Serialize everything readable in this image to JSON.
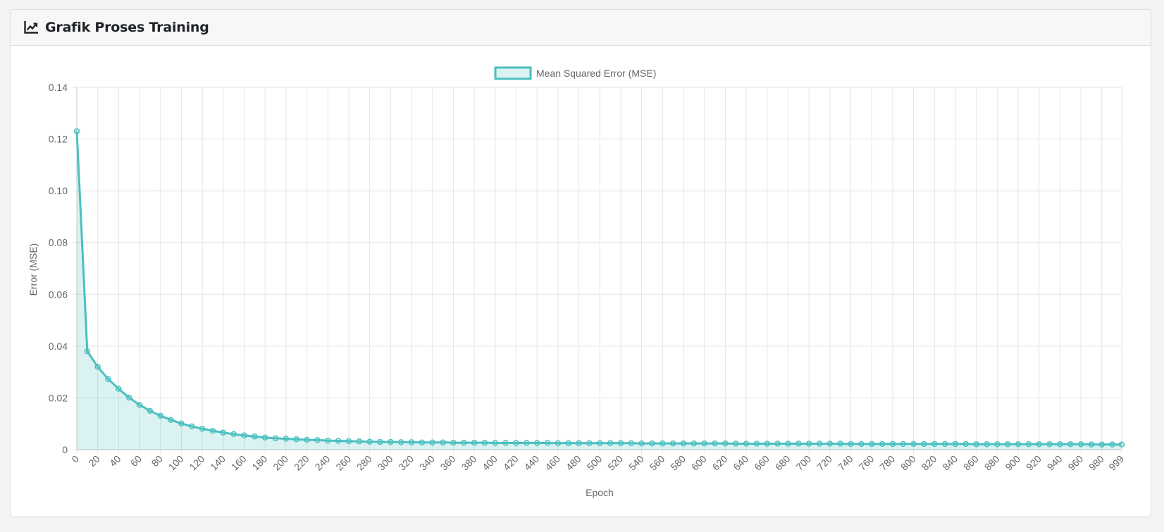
{
  "card": {
    "title": "Grafik Proses Training",
    "icon": "line-chart-icon"
  },
  "colors": {
    "line": "#4bc0c0",
    "fill": "rgba(75,192,192,0.2)",
    "grid": "#e5e5e5",
    "text": "#666666"
  },
  "chart_data": {
    "type": "line",
    "title": "",
    "xlabel": "Epoch",
    "ylabel": "Error (MSE)",
    "legend": {
      "position": "top",
      "label": "Mean Squared Error (MSE)"
    },
    "grid": true,
    "ylim": [
      0,
      0.14
    ],
    "yticks": [
      "0",
      "0.02",
      "0.04",
      "0.06",
      "0.08",
      "0.10",
      "0.12",
      "0.14"
    ],
    "xticks": [
      "0",
      "20",
      "40",
      "60",
      "80",
      "100",
      "120",
      "140",
      "160",
      "180",
      "200",
      "220",
      "240",
      "260",
      "280",
      "300",
      "320",
      "340",
      "360",
      "380",
      "400",
      "420",
      "440",
      "460",
      "480",
      "500",
      "520",
      "540",
      "560",
      "580",
      "600",
      "620",
      "640",
      "660",
      "680",
      "700",
      "720",
      "740",
      "760",
      "780",
      "800",
      "820",
      "840",
      "860",
      "880",
      "900",
      "920",
      "940",
      "960",
      "980",
      "999"
    ],
    "x": [
      0,
      10,
      20,
      30,
      40,
      50,
      60,
      70,
      80,
      90,
      100,
      110,
      120,
      130,
      140,
      150,
      160,
      170,
      180,
      190,
      200,
      210,
      220,
      230,
      240,
      250,
      260,
      270,
      280,
      290,
      300,
      310,
      320,
      330,
      340,
      350,
      360,
      370,
      380,
      390,
      400,
      410,
      420,
      430,
      440,
      450,
      460,
      470,
      480,
      490,
      500,
      510,
      520,
      530,
      540,
      550,
      560,
      570,
      580,
      590,
      600,
      610,
      620,
      630,
      640,
      650,
      660,
      670,
      680,
      690,
      700,
      710,
      720,
      730,
      740,
      750,
      760,
      770,
      780,
      790,
      800,
      810,
      820,
      830,
      840,
      850,
      860,
      870,
      880,
      890,
      900,
      910,
      920,
      930,
      940,
      950,
      960,
      970,
      980,
      990,
      999
    ],
    "series": [
      {
        "name": "Mean Squared Error (MSE)",
        "values": [
          0.123,
          0.038,
          0.032,
          0.0273,
          0.0235,
          0.0201,
          0.0173,
          0.015,
          0.0131,
          0.0115,
          0.0101,
          0.009,
          0.0081,
          0.0073,
          0.0066,
          0.006,
          0.0055,
          0.0051,
          0.0047,
          0.0044,
          0.0042,
          0.004,
          0.0038,
          0.0037,
          0.0035,
          0.0034,
          0.0033,
          0.0032,
          0.0031,
          0.003,
          0.003,
          0.0029,
          0.0029,
          0.0028,
          0.0028,
          0.0028,
          0.0027,
          0.0027,
          0.0027,
          0.0027,
          0.0026,
          0.0026,
          0.0026,
          0.0026,
          0.0026,
          0.0026,
          0.0025,
          0.0025,
          0.0025,
          0.0025,
          0.0025,
          0.0025,
          0.0025,
          0.0025,
          0.0024,
          0.0024,
          0.0024,
          0.0024,
          0.0024,
          0.0024,
          0.0024,
          0.0024,
          0.0024,
          0.0023,
          0.0023,
          0.0023,
          0.0023,
          0.0023,
          0.0023,
          0.0023,
          0.0023,
          0.0023,
          0.0023,
          0.0023,
          0.0022,
          0.0022,
          0.0022,
          0.0022,
          0.0022,
          0.0022,
          0.0022,
          0.0022,
          0.0022,
          0.0022,
          0.0022,
          0.0022,
          0.0021,
          0.0021,
          0.0021,
          0.0021,
          0.0021,
          0.0021,
          0.0021,
          0.0021,
          0.0021,
          0.0021,
          0.0021,
          0.002,
          0.002,
          0.002,
          0.002
        ]
      }
    ]
  }
}
